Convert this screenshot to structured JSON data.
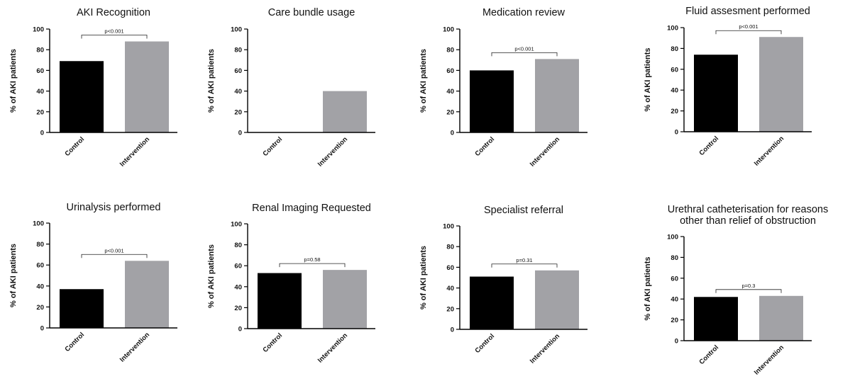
{
  "chart_data": [
    {
      "type": "bar",
      "title": [
        "AKI Recognition"
      ],
      "ylabel": "% of AKI patients",
      "categories": [
        "Control",
        "Intervention"
      ],
      "values": [
        69,
        88
      ],
      "ylim": [
        0,
        100
      ],
      "yticks": [
        0,
        20,
        40,
        60,
        80,
        100
      ],
      "annotation": "p<0.001",
      "colors": [
        "#000000",
        "#a2a2a6"
      ]
    },
    {
      "type": "bar",
      "title": [
        "Care bundle usage"
      ],
      "ylabel": "% of AKI patients",
      "categories": [
        "Control",
        "Intervention"
      ],
      "values": [
        0,
        40
      ],
      "ylim": [
        0,
        100
      ],
      "yticks": [
        0,
        20,
        40,
        60,
        80,
        100
      ],
      "annotation": "",
      "colors": [
        "#000000",
        "#a2a2a6"
      ]
    },
    {
      "type": "bar",
      "title": [
        "Medication review"
      ],
      "ylabel": "% of AKI patients",
      "categories": [
        "Control",
        "Intervention"
      ],
      "values": [
        60,
        71
      ],
      "ylim": [
        0,
        100
      ],
      "yticks": [
        0,
        20,
        40,
        60,
        80,
        100
      ],
      "annotation": "p<0.001",
      "colors": [
        "#000000",
        "#a2a2a6"
      ]
    },
    {
      "type": "bar",
      "title": [
        "Fluid assesment performed"
      ],
      "ylabel": "% of AKI patients",
      "categories": [
        "Control",
        "Intervention"
      ],
      "values": [
        74,
        91
      ],
      "ylim": [
        0,
        100
      ],
      "yticks": [
        0,
        20,
        40,
        60,
        80,
        100
      ],
      "annotation": "p<0.001",
      "colors": [
        "#000000",
        "#a2a2a6"
      ]
    },
    {
      "type": "bar",
      "title": [
        "Urinalysis performed"
      ],
      "ylabel": "% of AKI patients",
      "categories": [
        "Control",
        "Intervention"
      ],
      "values": [
        37,
        64
      ],
      "ylim": [
        0,
        100
      ],
      "yticks": [
        0,
        20,
        40,
        60,
        80,
        100
      ],
      "annotation": "p<0.001",
      "colors": [
        "#000000",
        "#a2a2a6"
      ]
    },
    {
      "type": "bar",
      "title": [
        "Renal Imaging Requested"
      ],
      "ylabel": "% of AKI patients",
      "categories": [
        "Control",
        "Intervention"
      ],
      "values": [
        53,
        56
      ],
      "ylim": [
        0,
        100
      ],
      "yticks": [
        0,
        20,
        40,
        60,
        80,
        100
      ],
      "annotation": "p=0.58",
      "colors": [
        "#000000",
        "#a2a2a6"
      ]
    },
    {
      "type": "bar",
      "title": [
        "Specialist referral"
      ],
      "ylabel": "% of AKI patients",
      "categories": [
        "Control",
        "Intervention"
      ],
      "values": [
        51,
        57
      ],
      "ylim": [
        0,
        100
      ],
      "yticks": [
        0,
        20,
        40,
        60,
        80,
        100
      ],
      "annotation": "p=0.31",
      "colors": [
        "#000000",
        "#a2a2a6"
      ]
    },
    {
      "type": "bar",
      "title": [
        "Urethral catheterisation for reasons",
        "other than relief of obstruction"
      ],
      "ylabel": "% of AKI patients",
      "categories": [
        "Control",
        "Intervention"
      ],
      "values": [
        42,
        43
      ],
      "ylim": [
        0,
        100
      ],
      "yticks": [
        0,
        20,
        40,
        60,
        80,
        100
      ],
      "annotation": "p=0.3",
      "colors": [
        "#000000",
        "#a2a2a6"
      ]
    }
  ]
}
